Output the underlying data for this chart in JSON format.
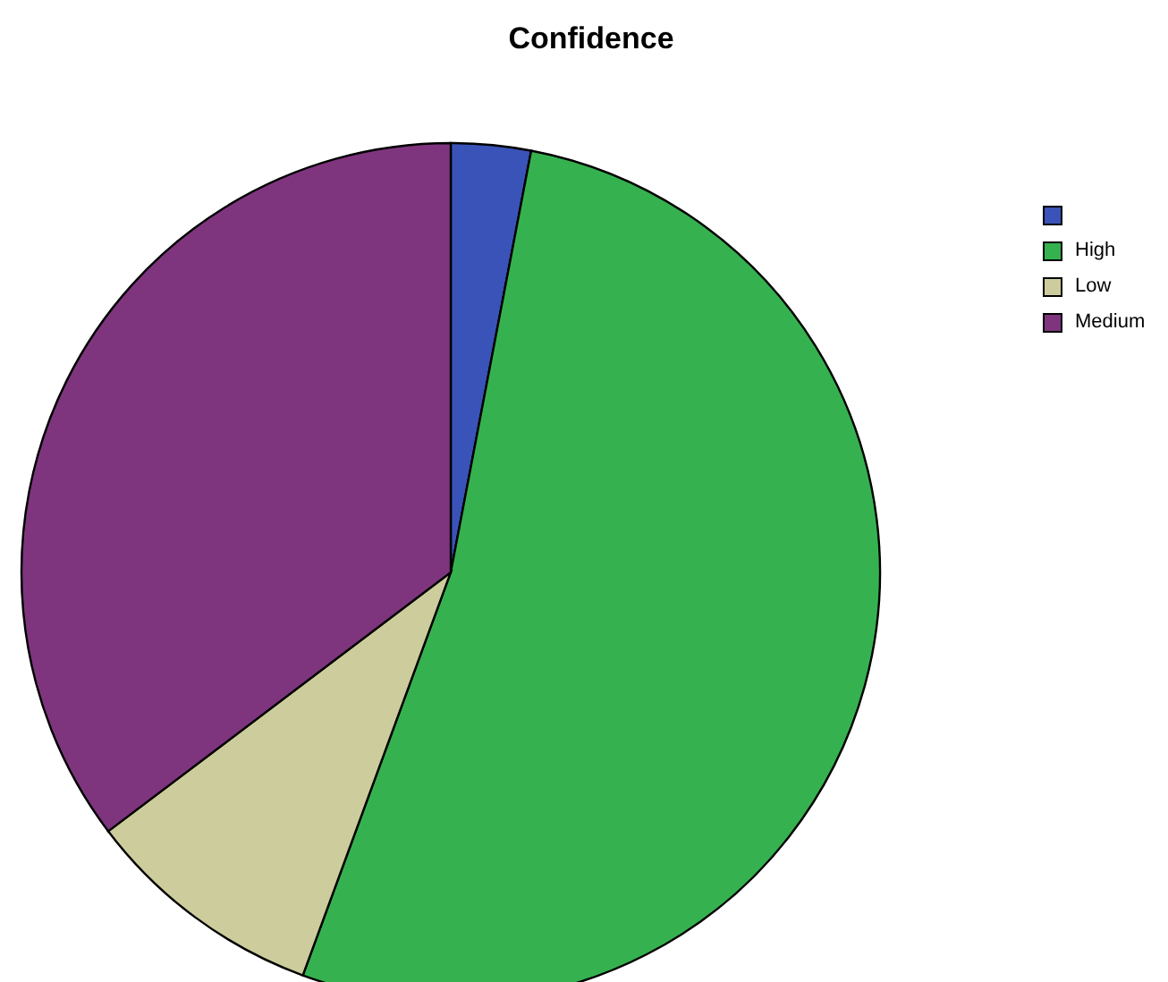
{
  "chart_data": {
    "type": "pie",
    "title": "Confidence",
    "categories": [
      null,
      "High",
      "Low",
      "Medium"
    ],
    "values": [
      3.0,
      52.6,
      9.1,
      35.3
    ],
    "colors": [
      "#3a53b8",
      "#35b24f",
      "#cdcc9c",
      "#7f357e"
    ],
    "legend": "top right"
  }
}
